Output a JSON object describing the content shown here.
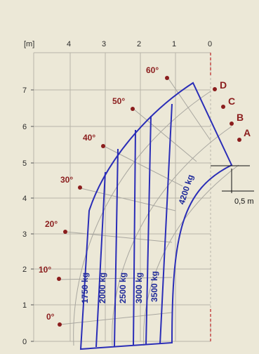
{
  "unit_label": "[m]",
  "x_ticks": [
    "4",
    "3",
    "2",
    "1",
    "0"
  ],
  "y_ticks": [
    "7",
    "6",
    "5",
    "4",
    "3",
    "2",
    "1",
    "0"
  ],
  "angles": [
    "60°",
    "50°",
    "40°",
    "30°",
    "20°",
    "10°",
    "0°"
  ],
  "extension_points": [
    "A",
    "B",
    "C",
    "D"
  ],
  "loads": [
    "1750 kg",
    "2000 kg",
    "2500 kg",
    "3000 kg",
    "3500 kg",
    "4200 kg"
  ],
  "dimension_label": "0,5 m",
  "colors": {
    "background": "#ece8d7",
    "envelope": "#2a2db7",
    "angle": "#8b1d1d",
    "grid": "#b8b5a8"
  }
}
